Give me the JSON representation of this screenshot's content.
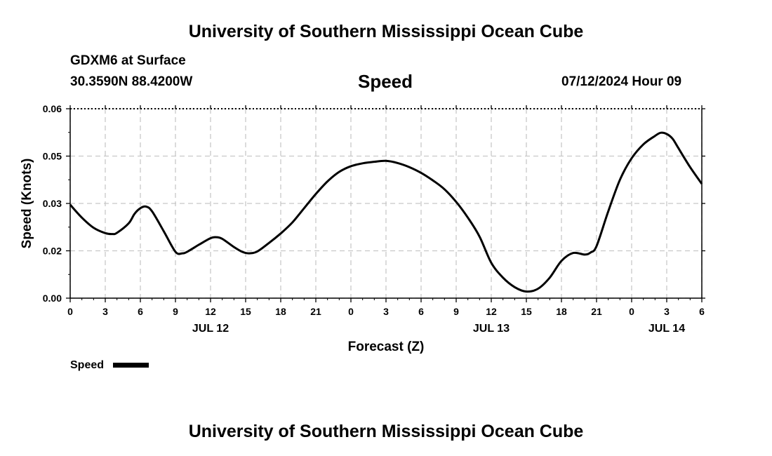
{
  "header": {
    "title_top": "University of Southern Mississippi Ocean Cube",
    "station": "GDXM6 at Surface",
    "location": "30.3590N  88.4200W",
    "chart_title": "Speed",
    "datetime": "07/12/2024 Hour 09"
  },
  "footer": {
    "title_bottom": "University of Southern Mississippi Ocean Cube"
  },
  "chart_data": {
    "type": "line",
    "title": "Speed",
    "xlabel": "Forecast (Z)",
    "ylabel": "Speed (Knots)",
    "ylim": [
      0,
      0.06
    ],
    "yticks": [
      "0.00",
      "0.02",
      "0.03",
      "0.05",
      "0.06"
    ],
    "ytick_values": [
      0,
      0.015,
      0.03,
      0.045,
      0.06
    ],
    "xticks": [
      "0",
      "3",
      "6",
      "9",
      "12",
      "15",
      "18",
      "21",
      "0",
      "3",
      "6",
      "9",
      "12",
      "15",
      "18",
      "21",
      "0",
      "3",
      "6"
    ],
    "day_labels": [
      {
        "label": "JUL 12",
        "hour": 12
      },
      {
        "label": "JUL 13",
        "hour": 36
      },
      {
        "label": "JUL 14",
        "hour": 51
      }
    ],
    "grid": true,
    "legend": {
      "position": "bottom-left",
      "entries": [
        "Speed"
      ]
    },
    "series": [
      {
        "name": "Speed",
        "color": "#000000",
        "x": [
          0,
          1,
          2,
          3,
          3.6,
          4,
          5,
          5.5,
          6,
          6.5,
          7,
          8,
          9,
          9.6,
          10,
          11,
          12,
          12.5,
          13,
          14,
          14.7,
          15.3,
          16,
          17,
          18,
          19,
          20,
          21,
          22,
          23,
          24,
          25,
          26,
          27,
          28,
          29,
          30,
          31,
          32,
          33,
          34,
          35,
          36,
          37,
          38,
          39,
          40,
          41,
          42,
          43,
          44,
          44.5,
          45,
          46,
          47,
          48,
          49,
          50,
          50.5,
          51,
          51.5,
          52,
          53,
          54
        ],
        "y": [
          0.0296,
          0.0255,
          0.0223,
          0.0206,
          0.0203,
          0.0207,
          0.0237,
          0.0267,
          0.0285,
          0.029,
          0.0275,
          0.0212,
          0.0147,
          0.0142,
          0.0147,
          0.0169,
          0.019,
          0.0193,
          0.0188,
          0.0162,
          0.0147,
          0.0142,
          0.0148,
          0.0175,
          0.0205,
          0.024,
          0.0285,
          0.033,
          0.037,
          0.04,
          0.0418,
          0.0427,
          0.0432,
          0.0435,
          0.0428,
          0.0415,
          0.0397,
          0.0373,
          0.0345,
          0.0305,
          0.0255,
          0.0195,
          0.0112,
          0.0065,
          0.0035,
          0.0021,
          0.003,
          0.0065,
          0.0118,
          0.0143,
          0.0138,
          0.0145,
          0.0165,
          0.0275,
          0.0375,
          0.0443,
          0.0487,
          0.0514,
          0.0524,
          0.052,
          0.0505,
          0.0475,
          0.0415,
          0.0362
        ]
      }
    ]
  }
}
